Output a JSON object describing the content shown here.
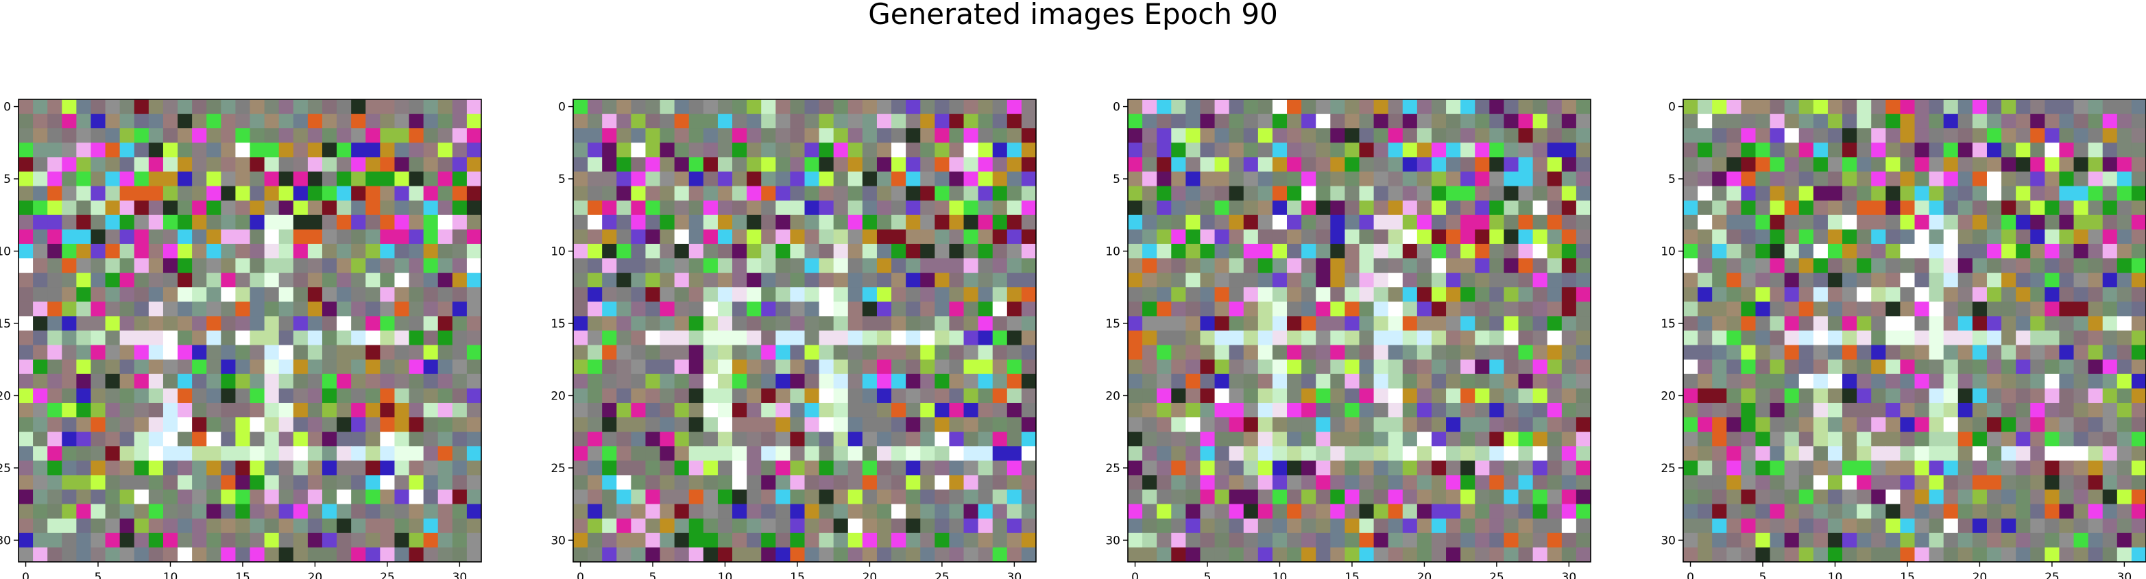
{
  "figure": {
    "title": "Generated images Epoch 90"
  },
  "chart_data": [
    {
      "type": "heatmap",
      "kind": "image",
      "width": 32,
      "height": 32,
      "xticks": [
        0,
        5,
        10,
        15,
        20,
        25,
        30
      ],
      "yticks": [
        0,
        5,
        10,
        15,
        20,
        25,
        30
      ],
      "xlim": [
        -0.5,
        31.5
      ],
      "ylim": [
        31.5,
        -0.5
      ],
      "seed": 11
    },
    {
      "type": "heatmap",
      "kind": "image",
      "width": 32,
      "height": 32,
      "xticks": [
        0,
        5,
        10,
        15,
        20,
        25,
        30
      ],
      "yticks": [
        0,
        5,
        10,
        15,
        20,
        25,
        30
      ],
      "xlim": [
        -0.5,
        31.5
      ],
      "ylim": [
        31.5,
        -0.5
      ],
      "seed": 23
    },
    {
      "type": "heatmap",
      "kind": "image",
      "width": 32,
      "height": 32,
      "xticks": [
        0,
        5,
        10,
        15,
        20,
        25,
        30
      ],
      "yticks": [
        0,
        5,
        10,
        15,
        20,
        25,
        30
      ],
      "xlim": [
        -0.5,
        31.5
      ],
      "ylim": [
        31.5,
        -0.5
      ],
      "seed": 37
    },
    {
      "type": "heatmap",
      "kind": "image",
      "width": 32,
      "height": 32,
      "xticks": [
        0,
        5,
        10,
        15,
        20,
        25,
        30
      ],
      "yticks": [
        0,
        5,
        10,
        15,
        20,
        25,
        30
      ],
      "xlim": [
        -0.5,
        31.5
      ],
      "ylim": [
        31.5,
        -0.5
      ],
      "seed": 53
    }
  ],
  "palette": {
    "mid": [
      "#7f7f7f",
      "#8a7d82",
      "#7b8777",
      "#6f8f6a",
      "#8e6f8a",
      "#8a8a6a",
      "#6d7f8f",
      "#9a7a7a",
      "#7a9a8a",
      "#8f8f8f",
      "#74856d",
      "#866f79",
      "#6f6f8a",
      "#a08a6f"
    ],
    "bright": [
      "#1a9e1a",
      "#40e040",
      "#e020a0",
      "#f040f0",
      "#7a1020",
      "#601060",
      "#3020c0",
      "#6a3fd0",
      "#ffffff",
      "#c0ff40",
      "#40d0f0",
      "#e06020",
      "#c8f0c8",
      "#f0b0f0",
      "#90c040",
      "#203020",
      "#c09020",
      "#b0d8b0"
    ],
    "pattern": [
      "#c8f0c8",
      "#e8ffe8",
      "#b0d8b0",
      "#d0f0ff",
      "#ffffff",
      "#c0e0a0",
      "#f0e0f0"
    ]
  }
}
